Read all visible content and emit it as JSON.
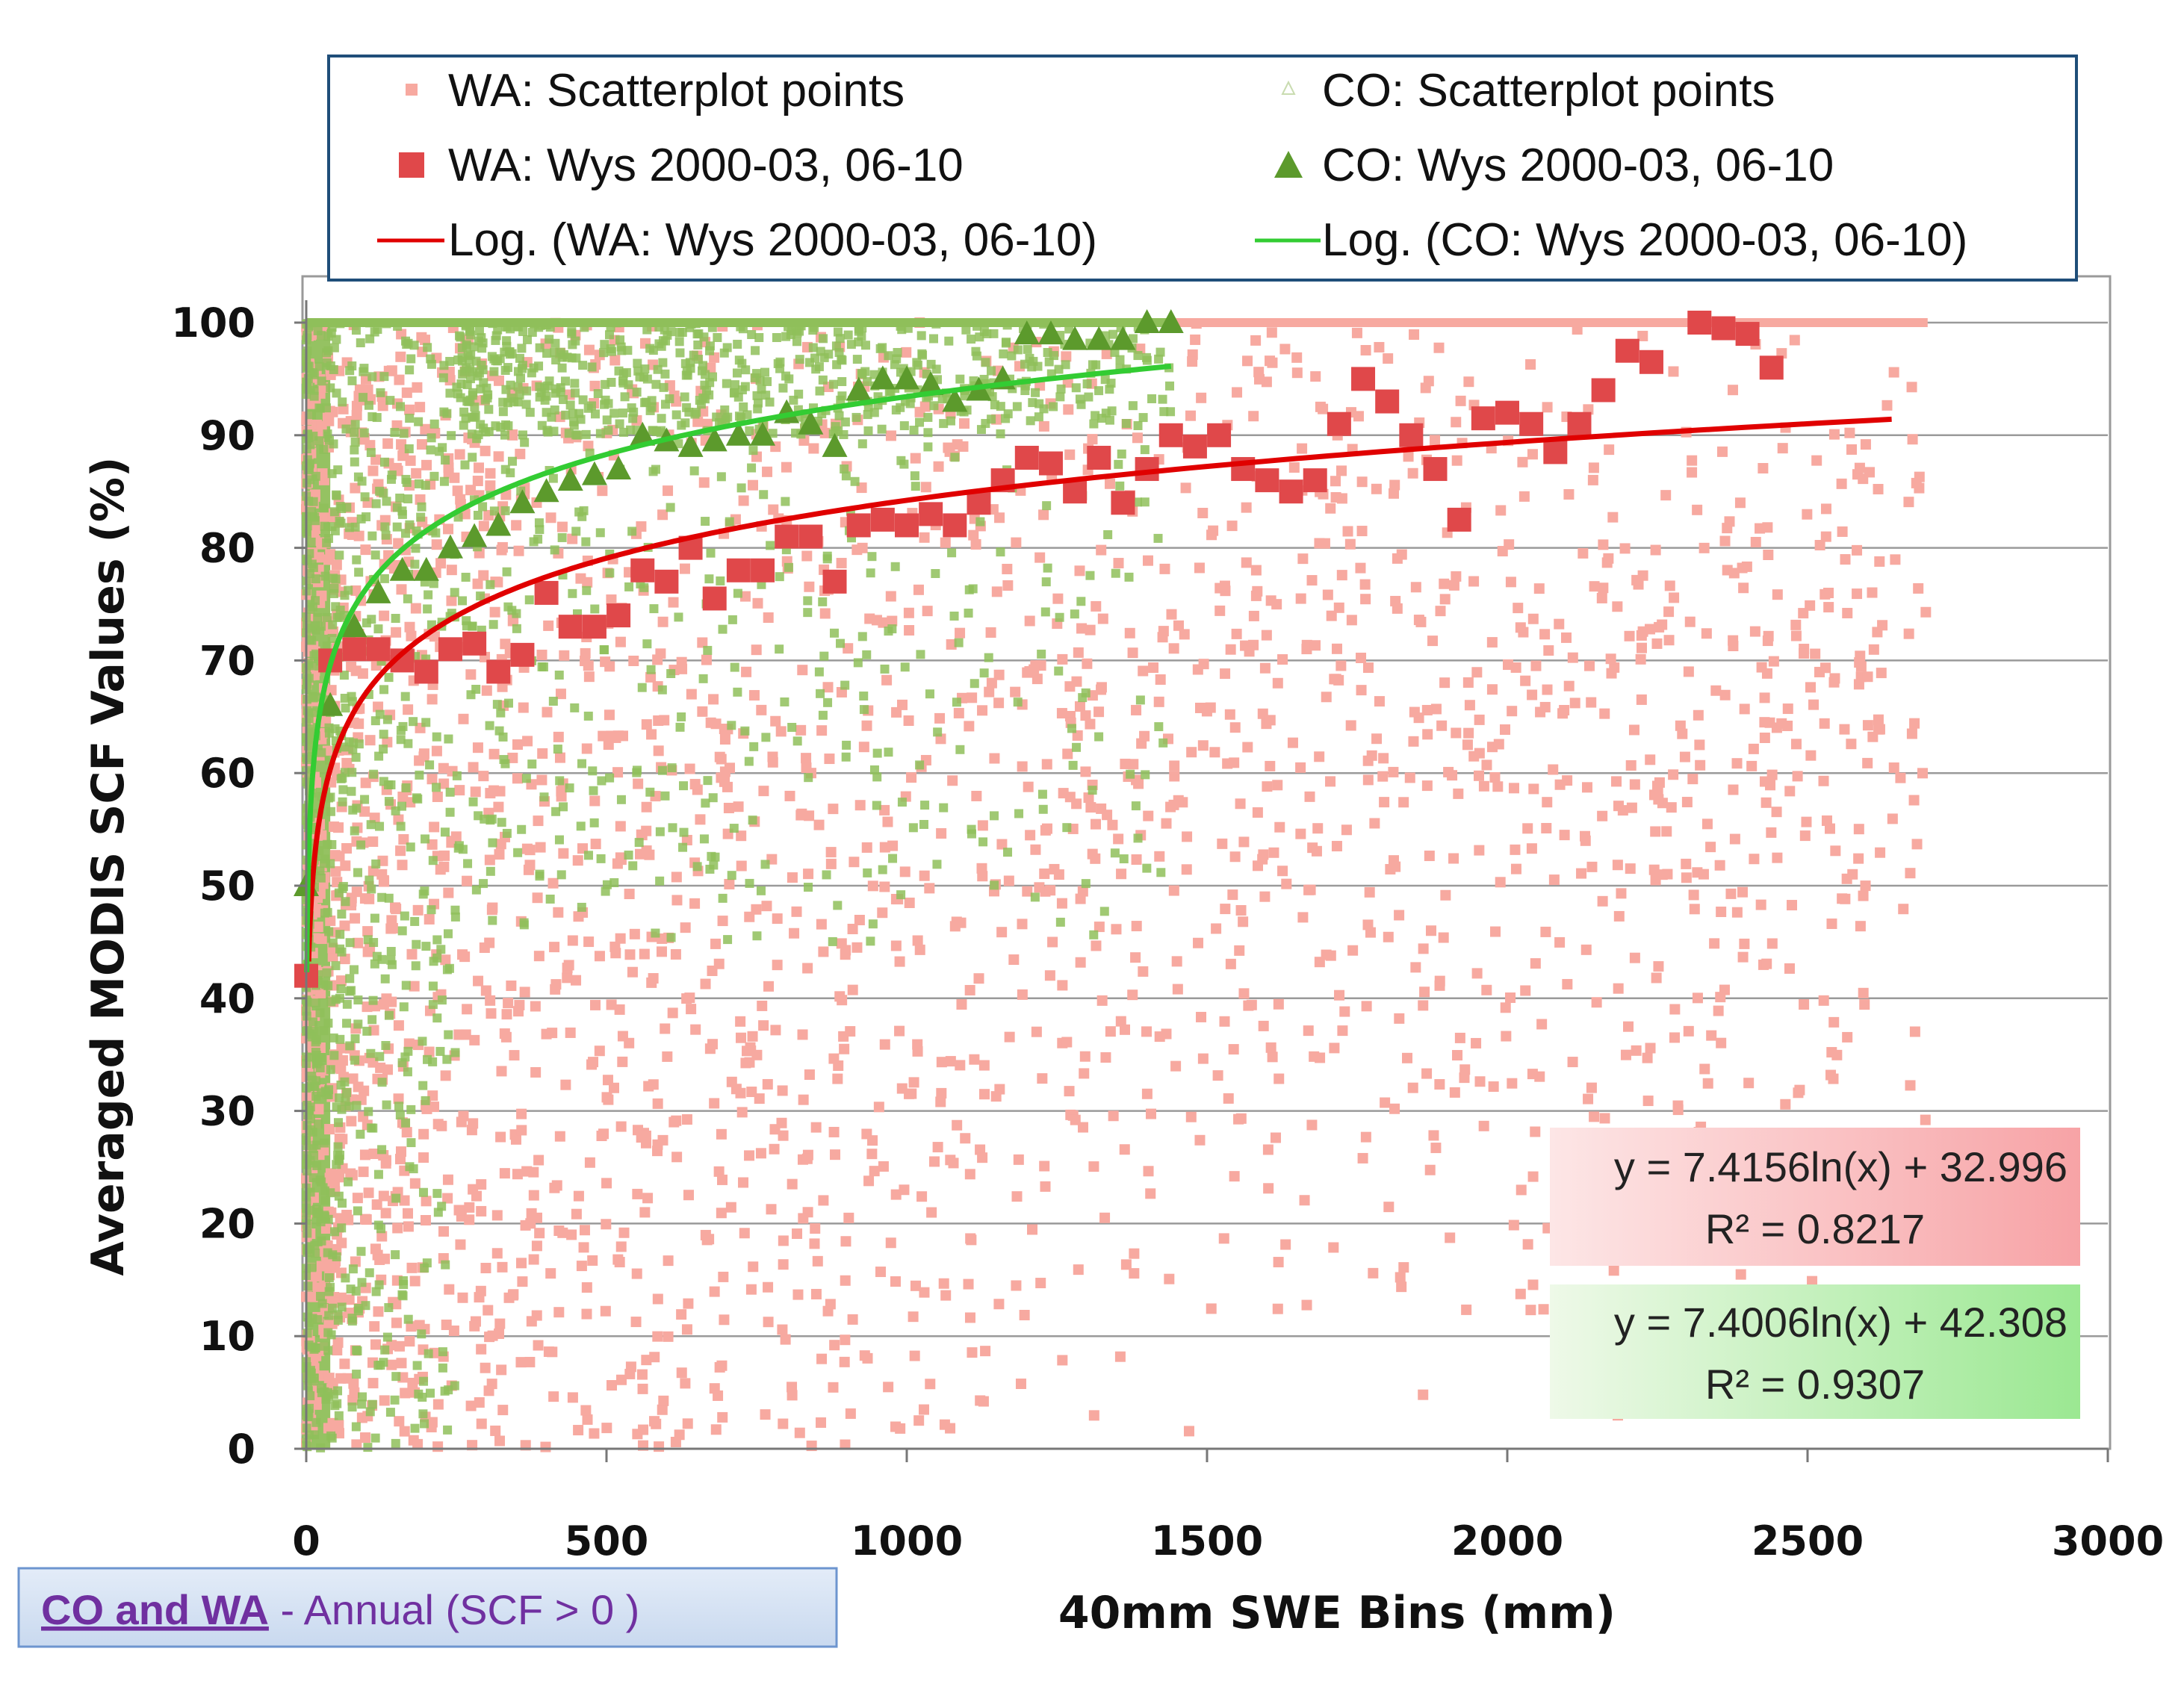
{
  "chart_data": {
    "type": "scatter",
    "xlabel": "40mm SWE Bins (mm)",
    "ylabel": "Averaged MODIS SCF Values (%)",
    "xlim": [
      0,
      3000
    ],
    "ylim": [
      0,
      100
    ],
    "x_ticks": [
      "0",
      "500",
      "1000",
      "1500",
      "2000",
      "2500",
      "3000"
    ],
    "y_ticks": [
      "0",
      "10",
      "20",
      "30",
      "40",
      "50",
      "60",
      "70",
      "80",
      "90",
      "100"
    ],
    "grid": "horizontal",
    "legend_position": "top",
    "colors": {
      "wa_scatter": "#f7a9a0",
      "co_scatter": "#8fbf5a",
      "wa_mean": "#e0484a",
      "co_mean": "#5c9a2c",
      "wa_fit": "#e00000",
      "co_fit": "#33cc33"
    },
    "legend": [
      {
        "label": "WA: Scatterplot points",
        "marker": "small-square"
      },
      {
        "label": "CO: Scatterplot points",
        "marker": "small-triangle-open"
      },
      {
        "label": "WA:  Wys 2000-03, 06-10",
        "marker": "square"
      },
      {
        "label": "CO:  Wys 2000-03, 06-10",
        "marker": "triangle"
      },
      {
        "label": "Log. (WA:  Wys 2000-03, 06-10)",
        "marker": "line-red"
      },
      {
        "label": "Log. (CO:  Wys 2000-03, 06-10)",
        "marker": "line-green"
      }
    ],
    "series": [
      {
        "name": "WA:  Wys 2000-03, 06-10",
        "marker": "square",
        "points": [
          [
            0,
            42
          ],
          [
            40,
            70
          ],
          [
            80,
            71
          ],
          [
            120,
            71
          ],
          [
            160,
            70
          ],
          [
            200,
            69
          ],
          [
            240,
            71
          ],
          [
            280,
            71.5
          ],
          [
            320,
            69
          ],
          [
            360,
            70.5
          ],
          [
            400,
            76
          ],
          [
            440,
            73
          ],
          [
            480,
            73
          ],
          [
            520,
            74
          ],
          [
            560,
            78
          ],
          [
            600,
            77
          ],
          [
            640,
            80
          ],
          [
            680,
            75.5
          ],
          [
            720,
            78
          ],
          [
            760,
            78
          ],
          [
            800,
            81
          ],
          [
            840,
            81
          ],
          [
            880,
            77
          ],
          [
            920,
            82
          ],
          [
            960,
            82.5
          ],
          [
            1000,
            82
          ],
          [
            1040,
            83
          ],
          [
            1080,
            82
          ],
          [
            1120,
            84
          ],
          [
            1160,
            86
          ],
          [
            1200,
            88
          ],
          [
            1240,
            87.5
          ],
          [
            1280,
            85
          ],
          [
            1320,
            88
          ],
          [
            1360,
            84
          ],
          [
            1400,
            87
          ],
          [
            1440,
            90
          ],
          [
            1480,
            89
          ],
          [
            1520,
            90
          ],
          [
            1560,
            87
          ],
          [
            1600,
            86
          ],
          [
            1640,
            85
          ],
          [
            1680,
            86
          ],
          [
            1720,
            91
          ],
          [
            1760,
            95
          ],
          [
            1800,
            93
          ],
          [
            1840,
            90
          ],
          [
            1880,
            87
          ],
          [
            1920,
            82.5
          ],
          [
            1960,
            91.5
          ],
          [
            2000,
            92
          ],
          [
            2040,
            91
          ],
          [
            2080,
            88.5
          ],
          [
            2120,
            91
          ],
          [
            2160,
            94
          ],
          [
            2200,
            97.5
          ],
          [
            2240,
            96.5
          ],
          [
            2320,
            100
          ],
          [
            2360,
            99.5
          ],
          [
            2400,
            99
          ],
          [
            2440,
            96
          ]
        ]
      },
      {
        "name": "CO:  Wys 2000-03, 06-10",
        "marker": "triangle",
        "points": [
          [
            0,
            50
          ],
          [
            40,
            66
          ],
          [
            80,
            73
          ],
          [
            120,
            76
          ],
          [
            160,
            78
          ],
          [
            200,
            78
          ],
          [
            240,
            80
          ],
          [
            280,
            81
          ],
          [
            320,
            82
          ],
          [
            360,
            84
          ],
          [
            400,
            85
          ],
          [
            440,
            86
          ],
          [
            480,
            86.5
          ],
          [
            520,
            87
          ],
          [
            560,
            90
          ],
          [
            600,
            89.5
          ],
          [
            640,
            89
          ],
          [
            680,
            89.5
          ],
          [
            720,
            90
          ],
          [
            760,
            90
          ],
          [
            800,
            92
          ],
          [
            840,
            91
          ],
          [
            880,
            89
          ],
          [
            920,
            94
          ],
          [
            960,
            95
          ],
          [
            1000,
            95
          ],
          [
            1040,
            94.5
          ],
          [
            1080,
            93
          ],
          [
            1120,
            94
          ],
          [
            1160,
            95
          ],
          [
            1200,
            99
          ],
          [
            1240,
            99
          ],
          [
            1280,
            98.5
          ],
          [
            1320,
            98.5
          ],
          [
            1360,
            98.5
          ],
          [
            1400,
            100
          ],
          [
            1440,
            100
          ]
        ]
      }
    ],
    "trendlines": [
      {
        "name": "Log. (WA:  Wys 2000-03, 06-10)",
        "a": 7.4156,
        "b": 32.996,
        "x_range": [
          4,
          2640
        ],
        "equation": "y = 7.4156ln(x) + 32.996",
        "r2": "R² = 0.8217"
      },
      {
        "name": "Log. (CO:  Wys 2000-03, 06-10)",
        "a": 7.4006,
        "b": 42.308,
        "x_range": [
          1,
          1440
        ],
        "equation": "y = 7.4006ln(x) + 42.308",
        "r2": "R² = 0.9307"
      }
    ],
    "scatter_clouds": [
      {
        "name": "WA: Scatterplot points",
        "x_range": [
          0,
          2700
        ],
        "y_range": [
          0,
          100
        ]
      },
      {
        "name": "CO: Scatterplot points",
        "x_range": [
          0,
          1440
        ],
        "y_range": [
          0,
          100
        ]
      }
    ],
    "annotation": {
      "title": "CO and WA",
      "suffix": " - Annual (SCF > 0 )"
    }
  }
}
